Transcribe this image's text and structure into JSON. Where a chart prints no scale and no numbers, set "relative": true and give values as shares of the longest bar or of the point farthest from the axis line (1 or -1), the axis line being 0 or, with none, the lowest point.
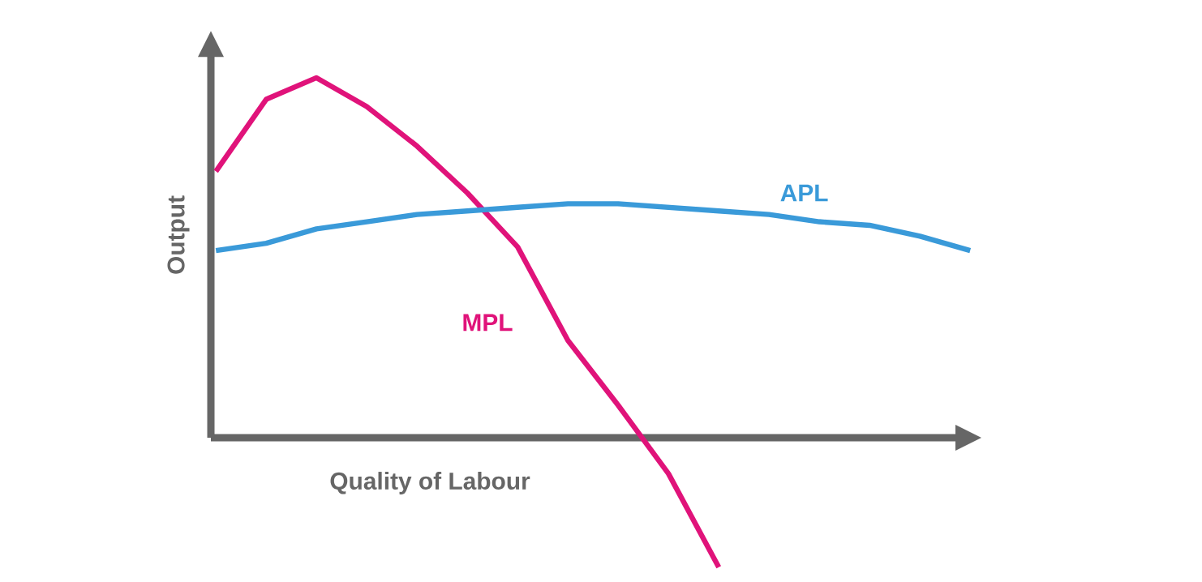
{
  "chart_data": {
    "type": "line",
    "relative": true,
    "xlabel": "Quality of Labour",
    "ylabel": "Output",
    "categories": [
      null,
      null,
      null,
      null,
      null,
      null,
      null,
      null,
      null,
      null,
      null,
      null,
      null,
      null,
      null,
      null
    ],
    "series": [
      {
        "name": "MPL",
        "color": "#e0137a",
        "values": [
          0.74,
          0.94,
          1.0,
          0.92,
          0.81,
          0.68,
          0.53,
          0.27,
          0.09,
          -0.1,
          -0.36,
          null,
          null,
          null,
          null,
          null
        ]
      },
      {
        "name": "APL",
        "color": "#3a9ad9",
        "values": [
          0.52,
          0.54,
          0.58,
          0.6,
          0.62,
          0.63,
          0.64,
          0.65,
          0.65,
          0.64,
          0.63,
          0.62,
          0.6,
          0.59,
          0.56,
          0.52
        ]
      }
    ]
  }
}
